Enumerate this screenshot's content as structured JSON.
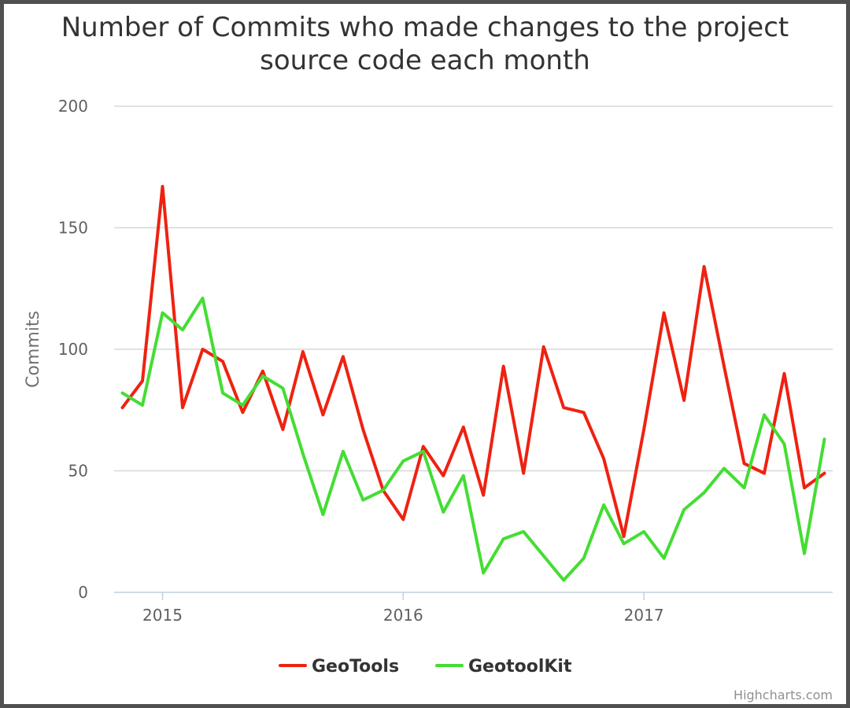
{
  "chart_data": {
    "type": "line",
    "title": "Number of Commits who made changes to the project source code each month",
    "title_lines": [
      "Number of Commits who made changes to the project",
      "source code each month"
    ],
    "ylabel": "Commits",
    "xlabel": "",
    "ylim": [
      0,
      200
    ],
    "yticks": [
      0,
      50,
      100,
      150,
      200
    ],
    "xlim": [
      "2014-11",
      "2017-10"
    ],
    "xticks": [
      {
        "label": "2015",
        "x": "2015-01"
      },
      {
        "label": "2016",
        "x": "2016-01"
      },
      {
        "label": "2017",
        "x": "2017-01"
      }
    ],
    "x": [
      "2014-11",
      "2014-12",
      "2015-01",
      "2015-02",
      "2015-03",
      "2015-04",
      "2015-05",
      "2015-06",
      "2015-07",
      "2015-08",
      "2015-09",
      "2015-10",
      "2015-11",
      "2015-12",
      "2016-01",
      "2016-02",
      "2016-03",
      "2016-04",
      "2016-05",
      "2016-06",
      "2016-07",
      "2016-08",
      "2016-09",
      "2016-10",
      "2016-11",
      "2016-12",
      "2017-01",
      "2017-02",
      "2017-03",
      "2017-04",
      "2017-05",
      "2017-06",
      "2017-07",
      "2017-08",
      "2017-09",
      "2017-10"
    ],
    "series": [
      {
        "name": "GeoTools",
        "color": "#ee2211",
        "values": [
          76,
          87,
          167,
          76,
          100,
          95,
          74,
          91,
          67,
          99,
          73,
          97,
          67,
          42,
          30,
          60,
          48,
          68,
          40,
          93,
          49,
          101,
          76,
          74,
          55,
          23,
          67,
          115,
          79,
          134,
          93,
          53,
          49,
          90,
          43,
          49
        ]
      },
      {
        "name": "GeotoolKit",
        "color": "#44dd33",
        "values": [
          82,
          77,
          115,
          108,
          121,
          82,
          77,
          89,
          84,
          57,
          32,
          58,
          38,
          42,
          54,
          58,
          33,
          48,
          8,
          22,
          25,
          15,
          5,
          14,
          36,
          20,
          25,
          14,
          34,
          41,
          51,
          43,
          73,
          61,
          16,
          63
        ]
      }
    ],
    "grid": true,
    "legend": "bottom-center"
  },
  "credits": "Highcharts.com"
}
